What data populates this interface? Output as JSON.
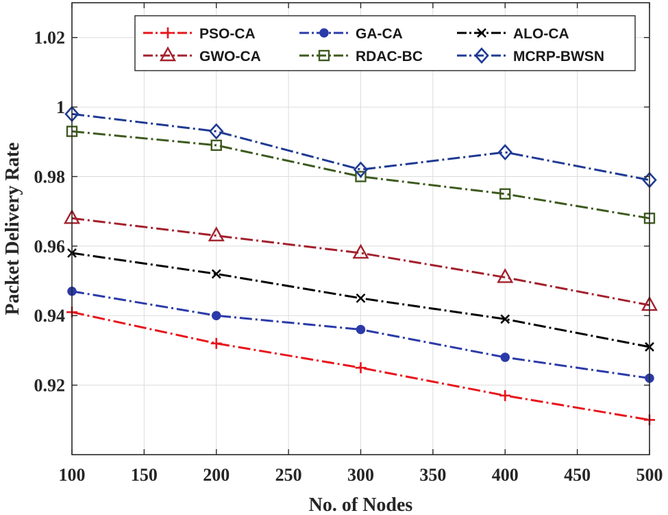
{
  "chart_data": {
    "type": "line",
    "title": "",
    "xlabel": "No. of Nodes",
    "ylabel": "Packet Delivery Rate",
    "x": [
      100,
      200,
      300,
      400,
      500
    ],
    "xlim": [
      100,
      500
    ],
    "ylim": [
      0.9,
      1.03
    ],
    "xticks": [
      100,
      150,
      200,
      250,
      300,
      350,
      400,
      450,
      500
    ],
    "yticks": [
      0.92,
      0.94,
      0.96,
      0.98,
      1.0,
      1.02
    ],
    "xtick_labels": [
      "100",
      "150",
      "200",
      "250",
      "300",
      "350",
      "400",
      "450",
      "500"
    ],
    "ytick_labels": [
      "0.92",
      "0.94",
      "0.96",
      "0.98",
      "1",
      "1.02"
    ],
    "grid": true,
    "legend_position": "top",
    "series": [
      {
        "name": "PSO-CA",
        "color": "#e8141b",
        "marker": "plus",
        "values": [
          0.941,
          0.932,
          0.925,
          0.917,
          0.91
        ]
      },
      {
        "name": "GA-CA",
        "color": "#2b3aa8",
        "marker": "circle",
        "values": [
          0.947,
          0.94,
          0.936,
          0.928,
          0.922
        ]
      },
      {
        "name": "ALO-CA",
        "color": "#000000",
        "marker": "x",
        "values": [
          0.958,
          0.952,
          0.945,
          0.939,
          0.931
        ]
      },
      {
        "name": "GWO-CA",
        "color": "#a3202c",
        "marker": "triangle",
        "values": [
          0.968,
          0.963,
          0.958,
          0.951,
          0.943
        ]
      },
      {
        "name": "RDAC-BC",
        "color": "#3d5a1e",
        "marker": "square",
        "values": [
          0.993,
          0.989,
          0.98,
          0.975,
          0.968
        ]
      },
      {
        "name": "MCRP-BWSN",
        "color": "#1f3a93",
        "marker": "diamond",
        "values": [
          0.998,
          0.993,
          0.982,
          0.987,
          0.979
        ]
      }
    ]
  }
}
